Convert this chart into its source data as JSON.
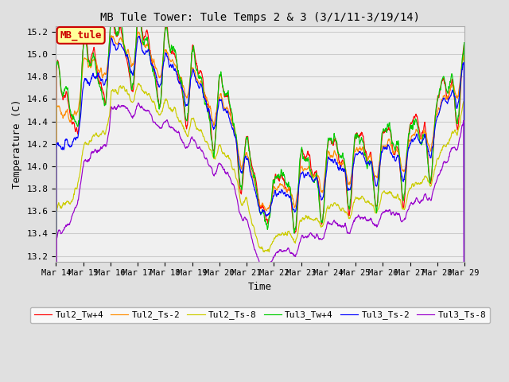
{
  "title": "MB Tule Tower: Tule Temps 2 & 3 (3/1/11-3/19/14)",
  "xlabel": "Time",
  "ylabel": "Temperature (C)",
  "ylim": [
    13.15,
    15.25
  ],
  "xlim_days": [
    0,
    15
  ],
  "xtick_labels": [
    "Mar 14",
    "Mar 15",
    "Mar 16",
    "Mar 17",
    "Mar 18",
    "Mar 19",
    "Mar 20",
    "Mar 21",
    "Mar 22",
    "Mar 23",
    "Mar 24",
    "Mar 25",
    "Mar 26",
    "Mar 27",
    "Mar 28",
    "Mar 29"
  ],
  "ytick_labels": [
    "13.2",
    "13.4",
    "13.6",
    "13.8",
    "14.0",
    "14.2",
    "14.4",
    "14.6",
    "14.8",
    "15.0",
    "15.2"
  ],
  "legend_labels": [
    "Tul2_Tw+4",
    "Tul2_Ts-2",
    "Tul2_Ts-8",
    "Tul3_Tw+4",
    "Tul3_Ts-2",
    "Tul3_Ts-8"
  ],
  "line_colors": [
    "#ff0000",
    "#ff8c00",
    "#cccc00",
    "#00cc00",
    "#0000ff",
    "#9900cc"
  ],
  "box_label": "MB_tule",
  "box_color": "#cc0000",
  "box_bg": "#ffff99",
  "background_color": "#e0e0e0",
  "plot_bg": "#f0f0f0",
  "grid_color": "#cccccc"
}
